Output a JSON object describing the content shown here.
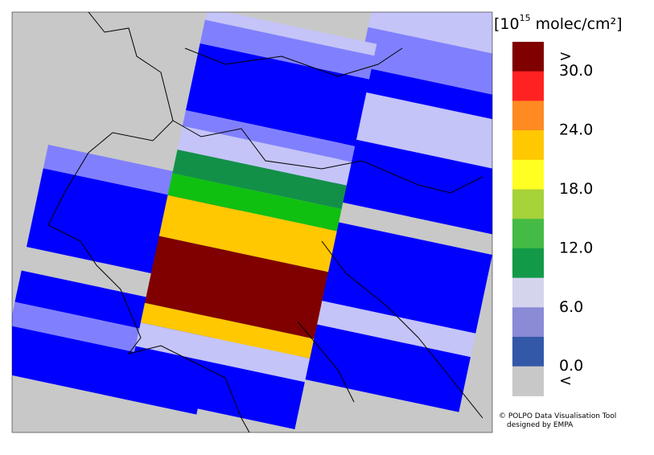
{
  "legend": {
    "title_prefix": "[10",
    "title_exponent": "15",
    "title_suffix": " molec/cm²]",
    "colors": [
      "#800000",
      "#ff2222",
      "#ff8a22",
      "#ffc800",
      "#ffff22",
      "#a6d23a",
      "#44bb44",
      "#129a48",
      "#d4d4ee",
      "#8a8ad6",
      "#3458a8",
      "#c8c8c8"
    ],
    "top_label": ">",
    "bottom_label": "<",
    "boundary_labels": [
      "30.0",
      "24.0",
      "18.0",
      "12.0",
      "6.0",
      "0.0"
    ]
  },
  "credit": {
    "line1": "© POLPO Data Visualisation Tool",
    "line2": "designed by EMPA"
  }
}
